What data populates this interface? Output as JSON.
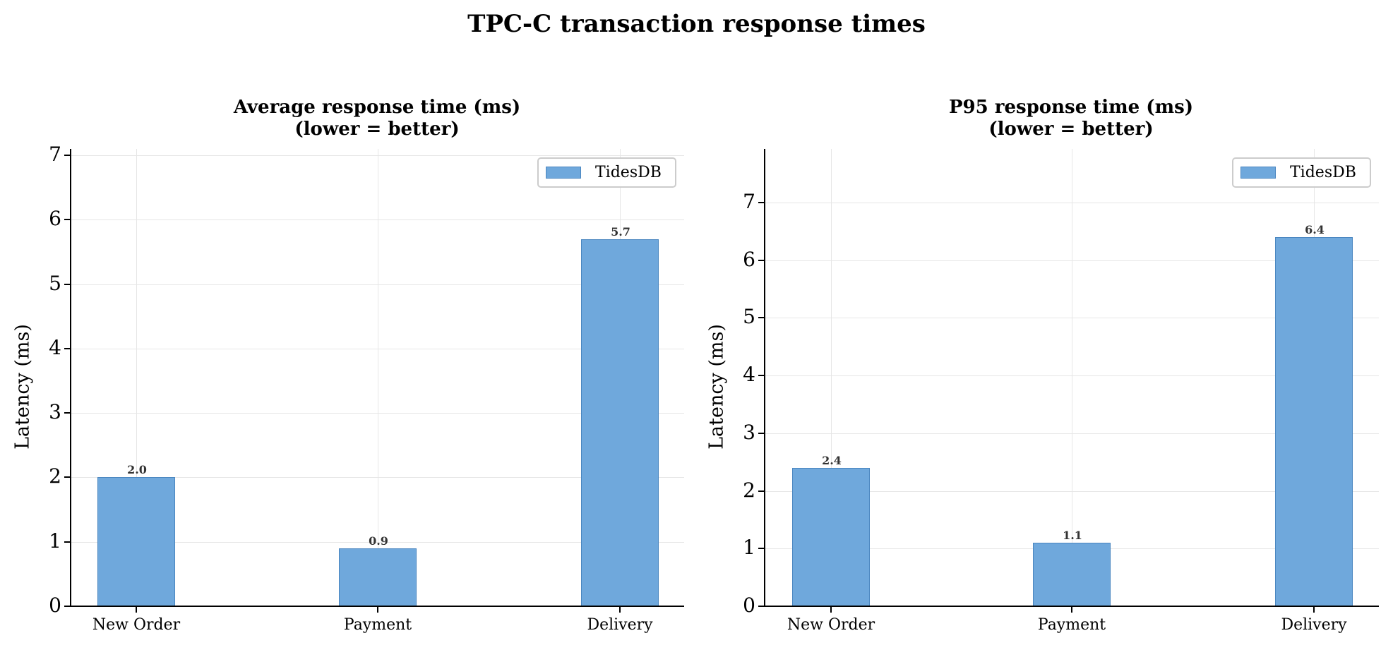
{
  "figure": {
    "title": "TPC-C transaction response times"
  },
  "colors": {
    "bar_fill": "#6fa8dc",
    "bar_edge": "#4a86c0",
    "grid": "#e6e6e6",
    "value_label": "#333333"
  },
  "chart_data": [
    {
      "type": "bar",
      "title": "Average response time (ms)\n(lower = better)",
      "title_lines": [
        "Average response time (ms)",
        "(lower = better)"
      ],
      "xlabel": "",
      "ylabel": "Latency (ms)",
      "categories": [
        "New Order",
        "Payment",
        "Delivery"
      ],
      "series": [
        {
          "name": "TidesDB",
          "values": [
            2.0,
            0.9,
            5.7
          ]
        }
      ],
      "value_labels": [
        "2.0",
        "0.9",
        "5.7"
      ],
      "yticks": [
        0,
        1,
        2,
        3,
        4,
        5,
        6,
        7
      ],
      "ylim": [
        0,
        7.1
      ],
      "grid": true,
      "legend": {
        "position": "upper right",
        "entries": [
          "TidesDB"
        ]
      }
    },
    {
      "type": "bar",
      "title": "P95 response time (ms)\n(lower = better)",
      "title_lines": [
        "P95 response time (ms)",
        "(lower = better)"
      ],
      "xlabel": "",
      "ylabel": "Latency (ms)",
      "categories": [
        "New Order",
        "Payment",
        "Delivery"
      ],
      "series": [
        {
          "name": "TidesDB",
          "values": [
            2.4,
            1.1,
            6.4
          ]
        }
      ],
      "value_labels": [
        "2.4",
        "1.1",
        "6.4"
      ],
      "yticks": [
        0,
        1,
        2,
        3,
        4,
        5,
        6,
        7
      ],
      "ylim": [
        0,
        7.93
      ],
      "grid": true,
      "legend": {
        "position": "upper right",
        "entries": [
          "TidesDB"
        ]
      }
    }
  ]
}
